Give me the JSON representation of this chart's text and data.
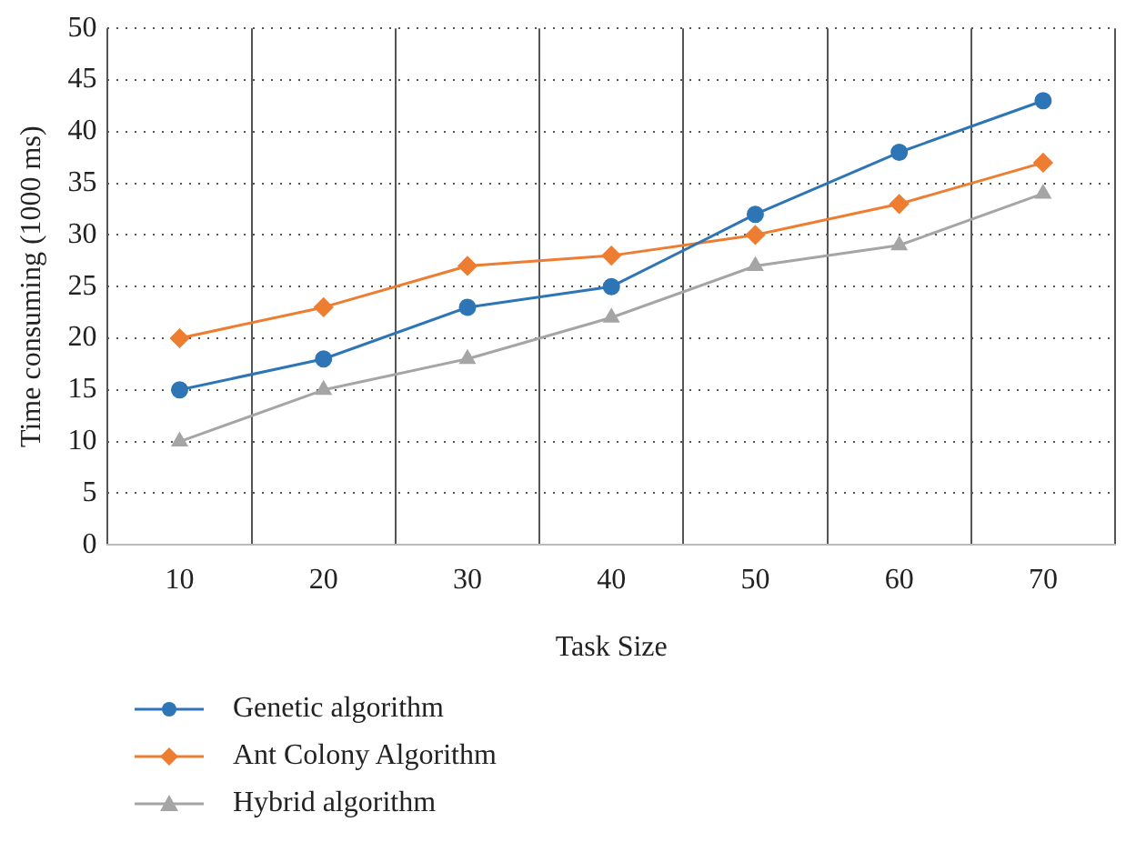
{
  "chart_data": {
    "type": "line",
    "xlabel": "Task Size",
    "ylabel": "Time consuming (1000 ms)",
    "categories": [
      "10",
      "20",
      "30",
      "40",
      "50",
      "60",
      "70"
    ],
    "ylim": [
      0,
      50
    ],
    "yticks": [
      0,
      5,
      10,
      15,
      20,
      25,
      30,
      35,
      40,
      45,
      50
    ],
    "grid": true,
    "legend": "bottom",
    "line_style": "solid",
    "series": [
      {
        "name": "Genetic algorithm",
        "color": "#2e75b6",
        "marker": "circle",
        "values": [
          15,
          18,
          23,
          25,
          32,
          38,
          43
        ]
      },
      {
        "name": "Ant Colony Algorithm",
        "color": "#ed7d31",
        "marker": "diamond",
        "values": [
          20,
          23,
          27,
          28,
          30,
          33,
          37
        ]
      },
      {
        "name": "Hybrid algorithm",
        "color": "#a5a5a5",
        "marker": "triangle",
        "values": [
          10,
          15,
          18,
          22,
          27,
          29,
          34
        ]
      }
    ]
  }
}
